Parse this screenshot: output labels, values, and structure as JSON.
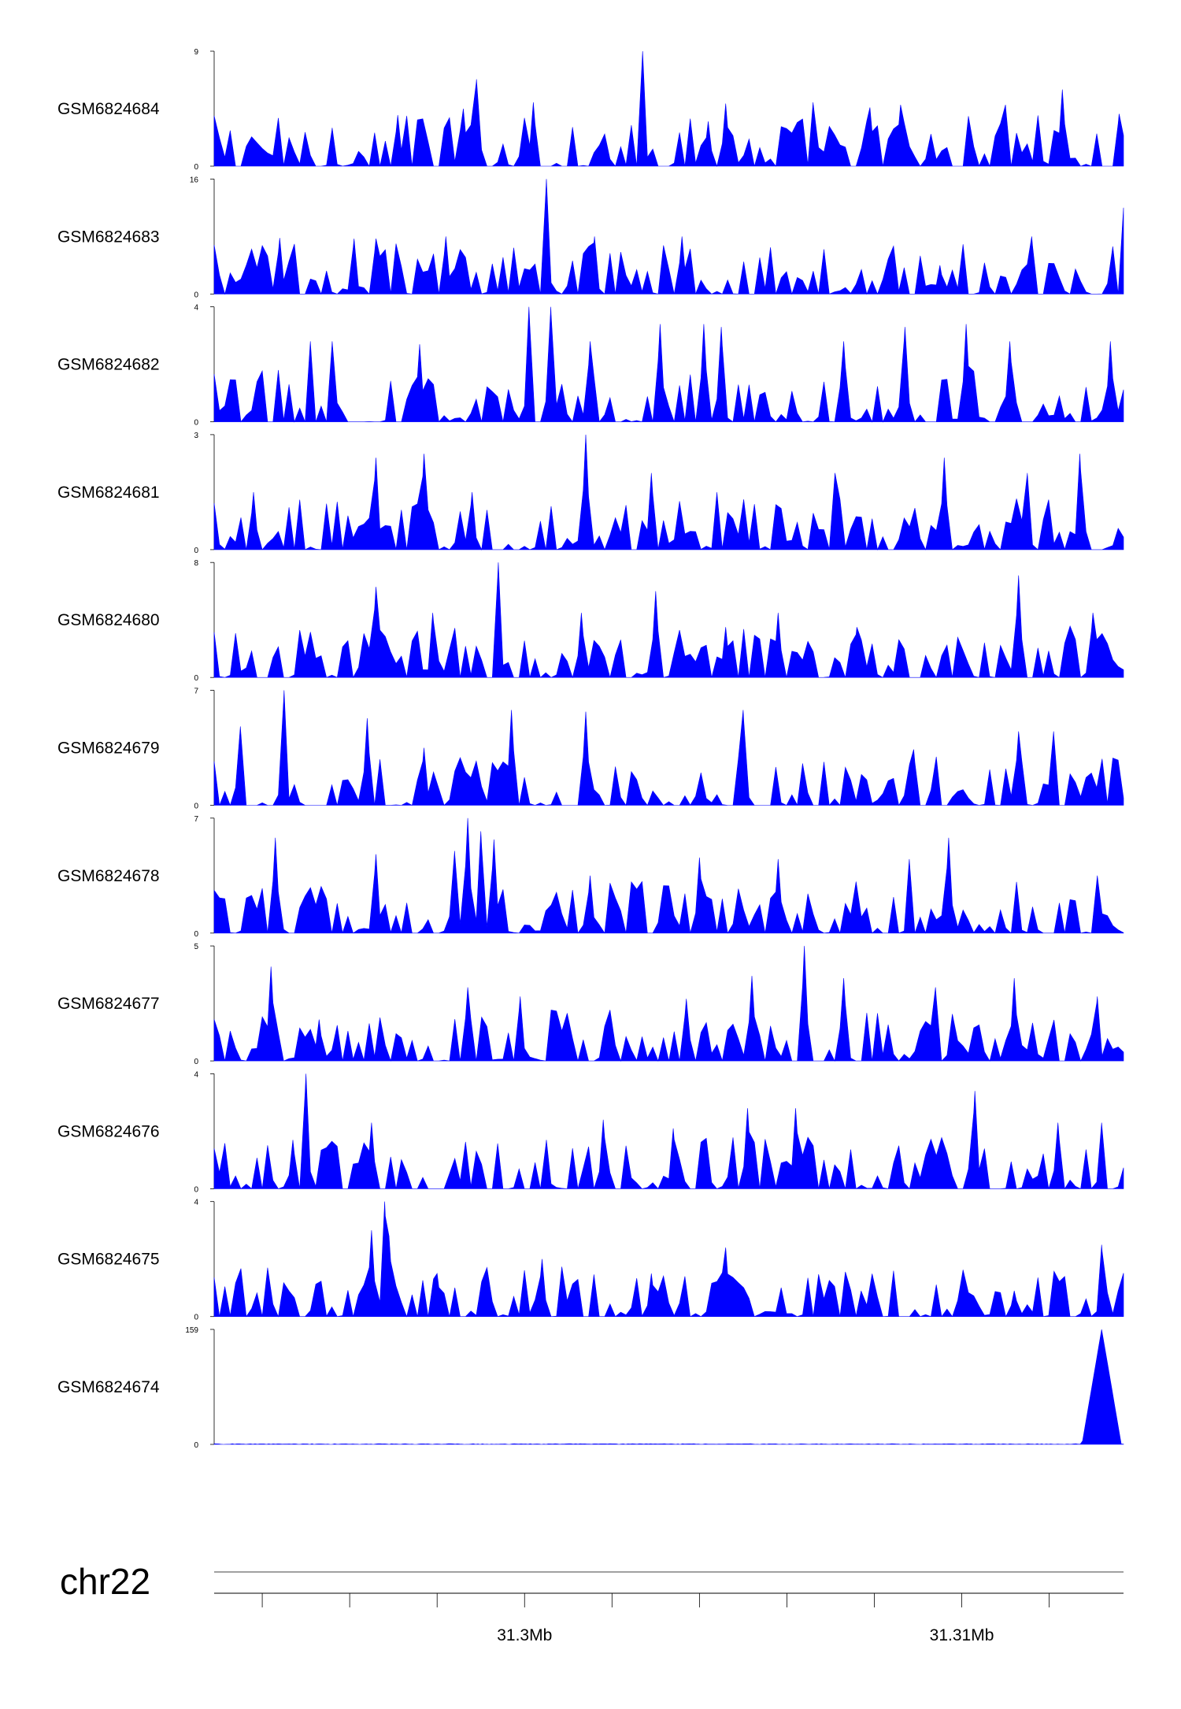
{
  "chart_data": {
    "type": "area",
    "title": "",
    "fill_color": "#0000ff",
    "chromosome": "chr22",
    "x_axis": {
      "unit": "Mb",
      "range": [
        31.2929,
        31.3137
      ],
      "minor_tick_step": 0.002,
      "labeled_ticks": [
        {
          "value": 31.3,
          "label": "31.3Mb"
        },
        {
          "value": 31.31,
          "label": "31.31Mb"
        }
      ]
    },
    "tracks": [
      {
        "name": "GSM6824684",
        "ylim": [
          0,
          9
        ],
        "ymax_label": "9",
        "ymin_label": "0",
        "peaks": [
          {
            "x": 31.2956,
            "h": 3.0
          },
          {
            "x": 31.2971,
            "h": 4.0
          },
          {
            "x": 31.2989,
            "h": 6.8
          },
          {
            "x": 31.2986,
            "h": 4.5
          },
          {
            "x": 31.3002,
            "h": 5.0
          },
          {
            "x": 31.3027,
            "h": 9.0
          },
          {
            "x": 31.3042,
            "h": 3.5
          },
          {
            "x": 31.3046,
            "h": 4.9
          },
          {
            "x": 31.3066,
            "h": 5.0
          },
          {
            "x": 31.3079,
            "h": 4.6
          },
          {
            "x": 31.3086,
            "h": 4.8
          },
          {
            "x": 31.311,
            "h": 4.8
          },
          {
            "x": 31.3123,
            "h": 6.0
          },
          {
            "x": 31.3136,
            "h": 4.1
          }
        ]
      },
      {
        "name": "GSM6824683",
        "ylim": [
          0,
          16
        ],
        "ymax_label": "16",
        "ymin_label": "0",
        "peaks": [
          {
            "x": 31.2944,
            "h": 7.8
          },
          {
            "x": 31.2961,
            "h": 7.7
          },
          {
            "x": 31.2966,
            "h": 7.7
          },
          {
            "x": 31.2982,
            "h": 8.0
          },
          {
            "x": 31.3005,
            "h": 16.0
          },
          {
            "x": 31.3016,
            "h": 8.0
          },
          {
            "x": 31.3036,
            "h": 8.0
          },
          {
            "x": 31.3095,
            "h": 4.0
          },
          {
            "x": 31.3116,
            "h": 8.0
          },
          {
            "x": 31.3137,
            "h": 12.0
          }
        ]
      },
      {
        "name": "GSM6824682",
        "ylim": [
          0,
          4
        ],
        "ymax_label": "4",
        "ymin_label": "0",
        "peaks": [
          {
            "x": 31.2951,
            "h": 2.8
          },
          {
            "x": 31.2956,
            "h": 2.8
          },
          {
            "x": 31.2976,
            "h": 2.7
          },
          {
            "x": 31.3001,
            "h": 4.0
          },
          {
            "x": 31.3006,
            "h": 4.0
          },
          {
            "x": 31.3015,
            "h": 2.8
          },
          {
            "x": 31.3031,
            "h": 3.4
          },
          {
            "x": 31.3041,
            "h": 3.4
          },
          {
            "x": 31.3045,
            "h": 3.3
          },
          {
            "x": 31.3073,
            "h": 2.8
          },
          {
            "x": 31.3087,
            "h": 3.3
          },
          {
            "x": 31.3101,
            "h": 3.4
          },
          {
            "x": 31.3111,
            "h": 2.8
          },
          {
            "x": 31.3134,
            "h": 2.8
          }
        ]
      },
      {
        "name": "GSM6824681",
        "ylim": [
          0,
          3
        ],
        "ymax_label": "3",
        "ymin_label": "0",
        "peaks": [
          {
            "x": 31.2938,
            "h": 1.5
          },
          {
            "x": 31.2966,
            "h": 2.4
          },
          {
            "x": 31.2977,
            "h": 2.5
          },
          {
            "x": 31.2988,
            "h": 1.5
          },
          {
            "x": 31.3014,
            "h": 3.0
          },
          {
            "x": 31.3029,
            "h": 2.0
          },
          {
            "x": 31.3044,
            "h": 1.5
          },
          {
            "x": 31.3071,
            "h": 2.0
          },
          {
            "x": 31.3096,
            "h": 2.4
          },
          {
            "x": 31.3115,
            "h": 2.0
          },
          {
            "x": 31.3127,
            "h": 2.5
          }
        ]
      },
      {
        "name": "GSM6824680",
        "ylim": [
          0,
          8
        ],
        "ymax_label": "8",
        "ymin_label": "0",
        "peaks": [
          {
            "x": 31.2966,
            "h": 6.3
          },
          {
            "x": 31.2979,
            "h": 4.5
          },
          {
            "x": 31.2994,
            "h": 8.0
          },
          {
            "x": 31.3013,
            "h": 4.5
          },
          {
            "x": 31.303,
            "h": 6.0
          },
          {
            "x": 31.3046,
            "h": 3.5
          },
          {
            "x": 31.3058,
            "h": 4.5
          },
          {
            "x": 31.3076,
            "h": 3.5
          },
          {
            "x": 31.3113,
            "h": 7.1
          },
          {
            "x": 31.313,
            "h": 4.5
          }
        ]
      },
      {
        "name": "GSM6824679",
        "ylim": [
          0,
          7
        ],
        "ymax_label": "7",
        "ymin_label": "0",
        "peaks": [
          {
            "x": 31.2935,
            "h": 4.8
          },
          {
            "x": 31.2945,
            "h": 7.0
          },
          {
            "x": 31.2964,
            "h": 5.3
          },
          {
            "x": 31.2977,
            "h": 3.5
          },
          {
            "x": 31.2997,
            "h": 5.8
          },
          {
            "x": 31.3014,
            "h": 5.7
          },
          {
            "x": 31.305,
            "h": 5.8
          },
          {
            "x": 31.3089,
            "h": 3.4
          },
          {
            "x": 31.3113,
            "h": 4.5
          },
          {
            "x": 31.3121,
            "h": 4.5
          }
        ]
      },
      {
        "name": "GSM6824678",
        "ylim": [
          0,
          7
        ],
        "ymax_label": "7",
        "ymin_label": "0",
        "peaks": [
          {
            "x": 31.2943,
            "h": 5.8
          },
          {
            "x": 31.2966,
            "h": 4.8
          },
          {
            "x": 31.2984,
            "h": 5.0
          },
          {
            "x": 31.2987,
            "h": 7.0
          },
          {
            "x": 31.299,
            "h": 6.2
          },
          {
            "x": 31.2993,
            "h": 5.7
          },
          {
            "x": 31.3015,
            "h": 3.5
          },
          {
            "x": 31.304,
            "h": 4.6
          },
          {
            "x": 31.3058,
            "h": 4.5
          },
          {
            "x": 31.3088,
            "h": 4.5
          },
          {
            "x": 31.3097,
            "h": 5.8
          },
          {
            "x": 31.3131,
            "h": 3.5
          }
        ]
      },
      {
        "name": "GSM6824677",
        "ylim": [
          0,
          5
        ],
        "ymax_label": "5",
        "ymin_label": "0",
        "peaks": [
          {
            "x": 31.2942,
            "h": 4.1
          },
          {
            "x": 31.2953,
            "h": 1.8
          },
          {
            "x": 31.2987,
            "h": 3.2
          },
          {
            "x": 31.2999,
            "h": 2.8
          },
          {
            "x": 31.3037,
            "h": 2.7
          },
          {
            "x": 31.3052,
            "h": 3.7
          },
          {
            "x": 31.3064,
            "h": 5.0
          },
          {
            "x": 31.3073,
            "h": 3.6
          },
          {
            "x": 31.3094,
            "h": 3.2
          },
          {
            "x": 31.3112,
            "h": 3.6
          },
          {
            "x": 31.3131,
            "h": 2.8
          }
        ]
      },
      {
        "name": "GSM6824676",
        "ylim": [
          0,
          4
        ],
        "ymax_label": "4",
        "ymin_label": "0",
        "peaks": [
          {
            "x": 31.295,
            "h": 4.0
          },
          {
            "x": 31.2947,
            "h": 1.7
          },
          {
            "x": 31.2965,
            "h": 2.3
          },
          {
            "x": 31.3005,
            "h": 1.7
          },
          {
            "x": 31.3018,
            "h": 2.4
          },
          {
            "x": 31.3034,
            "h": 2.1
          },
          {
            "x": 31.3051,
            "h": 2.8
          },
          {
            "x": 31.3062,
            "h": 2.8
          },
          {
            "x": 31.3103,
            "h": 3.4
          },
          {
            "x": 31.3122,
            "h": 2.3
          },
          {
            "x": 31.3132,
            "h": 2.3
          }
        ]
      },
      {
        "name": "GSM6824675",
        "ylim": [
          0,
          4
        ],
        "ymax_label": "4",
        "ymin_label": "0",
        "peaks": [
          {
            "x": 31.2965,
            "h": 3.0
          },
          {
            "x": 31.2968,
            "h": 4.0
          },
          {
            "x": 31.2969,
            "h": 2.8
          },
          {
            "x": 31.298,
            "h": 1.5
          },
          {
            "x": 31.3004,
            "h": 2.0
          },
          {
            "x": 31.3029,
            "h": 1.5
          },
          {
            "x": 31.3046,
            "h": 2.4
          },
          {
            "x": 31.3077,
            "h": 0.9
          },
          {
            "x": 31.3112,
            "h": 0.9
          },
          {
            "x": 31.3132,
            "h": 2.5
          }
        ]
      },
      {
        "name": "GSM6824674",
        "ylim": [
          0,
          159
        ],
        "ymax_label": "159",
        "ymin_label": "0",
        "peaks": [
          {
            "x": 31.3132,
            "h": 159.0
          }
        ]
      }
    ]
  }
}
